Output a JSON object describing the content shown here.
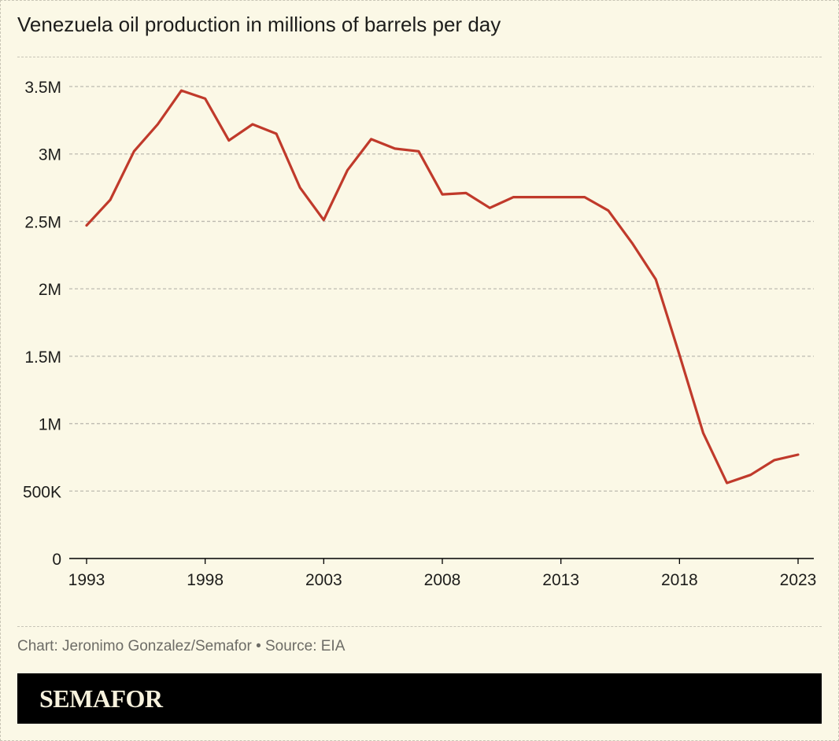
{
  "colors": {
    "background": "#fbf8e6",
    "line": "#c03a2b",
    "grid": "#bdbab0",
    "text": "#1d1d1b"
  },
  "chart_data": {
    "type": "line",
    "title": "Venezuela oil production in millions of barrels per day",
    "xlabel": "",
    "ylabel": "",
    "xlim": [
      1993,
      2023
    ],
    "ylim": [
      0,
      3500000
    ],
    "x_ticks": [
      1993,
      1998,
      2003,
      2008,
      2013,
      2018,
      2023
    ],
    "x_tick_labels": [
      "1993",
      "1998",
      "2003",
      "2008",
      "2013",
      "2018",
      "2023"
    ],
    "y_ticks": [
      0,
      500000,
      1000000,
      1500000,
      2000000,
      2500000,
      3000000,
      3500000
    ],
    "y_tick_labels": [
      "0",
      "500K",
      "1M",
      "1.5M",
      "2M",
      "2.5M",
      "3M",
      "3.5M"
    ],
    "grid": true,
    "series": [
      {
        "name": "Venezuela oil production",
        "x": [
          1993,
          1994,
          1995,
          1996,
          1997,
          1998,
          1999,
          2000,
          2001,
          2002,
          2003,
          2004,
          2005,
          2006,
          2007,
          2008,
          2009,
          2010,
          2011,
          2012,
          2013,
          2014,
          2015,
          2016,
          2017,
          2018,
          2019,
          2020,
          2021,
          2022,
          2023
        ],
        "values": [
          2470000,
          2660000,
          3020000,
          3220000,
          3470000,
          3410000,
          3100000,
          3220000,
          3150000,
          2750000,
          2510000,
          2880000,
          3110000,
          3040000,
          3020000,
          2700000,
          2710000,
          2600000,
          2680000,
          2680000,
          2680000,
          2680000,
          2580000,
          2340000,
          2070000,
          1510000,
          930000,
          560000,
          620000,
          730000,
          770000
        ]
      }
    ]
  },
  "footer": {
    "source": "Chart: Jeronimo Gonzalez/Semafor • Source: EIA",
    "brand": "SEMAFOR"
  }
}
